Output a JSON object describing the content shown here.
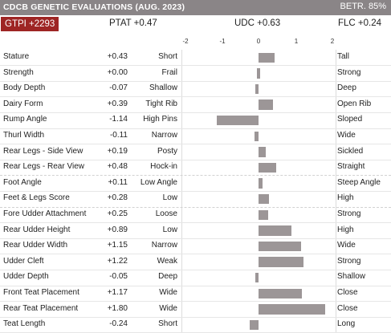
{
  "header": {
    "title": "CDCB GENETIC EVALUATIONS (AUG. 2023)",
    "reliability": "BETR. 85%"
  },
  "summary": {
    "gtpi": "GTPI +2293",
    "ptat": "PTAT +0.47",
    "udc": "UDC +0.63",
    "flc": "FLC +0.24"
  },
  "axis": {
    "ticks": [
      "-2",
      "-1",
      "0",
      "1",
      "2"
    ]
  },
  "colors": {
    "header_bg": "#8a8587",
    "badge_bg": "#9e2524",
    "bar": "#9c9697"
  },
  "chart_data": {
    "type": "bar",
    "orientation": "horizontal",
    "xlim": [
      -2,
      2
    ],
    "traits": [
      {
        "name": "Stature",
        "value": 0.43,
        "value_text": "+0.43",
        "low": "Short",
        "high": "Tall"
      },
      {
        "name": "Strength",
        "value": 0.0,
        "value_text": "+0.00",
        "low": "Frail",
        "high": "Strong"
      },
      {
        "name": "Body Depth",
        "value": -0.07,
        "value_text": "-0.07",
        "low": "Shallow",
        "high": "Deep"
      },
      {
        "name": "Dairy Form",
        "value": 0.39,
        "value_text": "+0.39",
        "low": "Tight Rib",
        "high": "Open Rib"
      },
      {
        "name": "Rump Angle",
        "value": -1.14,
        "value_text": "-1.14",
        "low": "High Pins",
        "high": "Sloped"
      },
      {
        "name": "Thurl Width",
        "value": -0.11,
        "value_text": "-0.11",
        "low": "Narrow",
        "high": "Wide"
      },
      {
        "name": "Rear Legs - Side View",
        "value": 0.19,
        "value_text": "+0.19",
        "low": "Posty",
        "high": "Sickled"
      },
      {
        "name": "Rear Legs - Rear View",
        "value": 0.48,
        "value_text": "+0.48",
        "low": "Hock-in",
        "high": "Straight"
      },
      {
        "name": "Foot Angle",
        "value": 0.11,
        "value_text": "+0.11",
        "low": "Low Angle",
        "high": "Steep Angle"
      },
      {
        "name": "Feet & Legs Score",
        "value": 0.28,
        "value_text": "+0.28",
        "low": "Low",
        "high": "High"
      },
      {
        "name": "Fore Udder Attachment",
        "value": 0.25,
        "value_text": "+0.25",
        "low": "Loose",
        "high": "Strong"
      },
      {
        "name": "Rear Udder Height",
        "value": 0.89,
        "value_text": "+0.89",
        "low": "Low",
        "high": "High"
      },
      {
        "name": "Rear Udder Width",
        "value": 1.15,
        "value_text": "+1.15",
        "low": "Narrow",
        "high": "Wide"
      },
      {
        "name": "Udder Cleft",
        "value": 1.22,
        "value_text": "+1.22",
        "low": "Weak",
        "high": "Strong"
      },
      {
        "name": "Udder Depth",
        "value": -0.05,
        "value_text": "-0.05",
        "low": "Deep",
        "high": "Shallow"
      },
      {
        "name": "Front Teat Placement",
        "value": 1.17,
        "value_text": "+1.17",
        "low": "Wide",
        "high": "Close"
      },
      {
        "name": "Rear Teat Placement",
        "value": 1.8,
        "value_text": "+1.80",
        "low": "Wide",
        "high": "Close"
      },
      {
        "name": "Teat Length",
        "value": -0.24,
        "value_text": "-0.24",
        "low": "Short",
        "high": "Long"
      }
    ]
  }
}
